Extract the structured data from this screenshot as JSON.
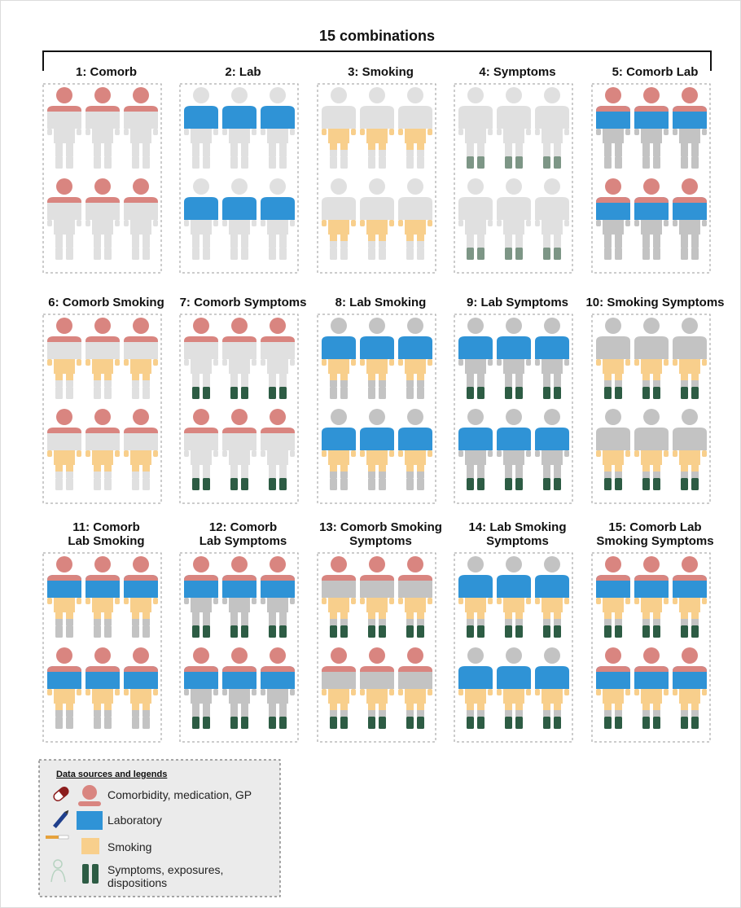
{
  "title": "15 combinations",
  "panels": [
    {
      "label": [
        "1: Comorb"
      ]
    },
    {
      "label": [
        "2: Lab"
      ]
    },
    {
      "label": [
        "3: Smoking"
      ]
    },
    {
      "label": [
        "4: Symptoms"
      ]
    },
    {
      "label": [
        "5: Comorb Lab"
      ]
    },
    {
      "label": [
        "6: Comorb Smoking"
      ]
    },
    {
      "label": [
        "7: Comorb Symptoms"
      ]
    },
    {
      "label": [
        "8: Lab Smoking"
      ]
    },
    {
      "label": [
        "9: Lab Symptoms"
      ]
    },
    {
      "label": [
        "10: Smoking Symptoms"
      ]
    },
    {
      "label": [
        "11: Comorb",
        "Lab Smoking"
      ]
    },
    {
      "label": [
        "12: Comorb",
        "Lab Symptoms"
      ]
    },
    {
      "label": [
        "13: Comorb Smoking",
        "Symptoms"
      ]
    },
    {
      "label": [
        "14: Lab Smoking",
        "Symptoms"
      ]
    },
    {
      "label": [
        "15: Comorb Lab",
        "Smoking Symptoms"
      ]
    }
  ],
  "legend": {
    "title": "Data sources and legends",
    "items": [
      [
        "Comorbidity, medication, GP"
      ],
      [
        "Laboratory"
      ],
      [
        "Smoking"
      ],
      [
        "Symptoms, exposures,",
        "dispositions"
      ]
    ]
  }
}
